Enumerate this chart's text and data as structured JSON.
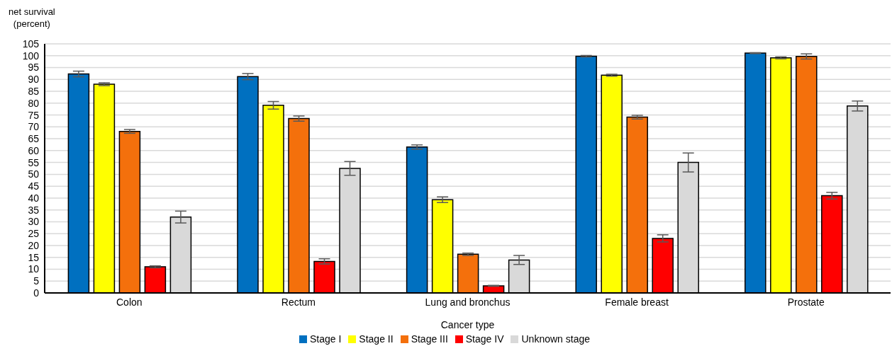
{
  "chart_data": {
    "type": "bar",
    "ylabel": "net survival\n(percent)",
    "xlabel": "Cancer type",
    "categories": [
      "Colon",
      "Rectum",
      "Lung and bronchus",
      "Female breast",
      "Prostate"
    ],
    "series": [
      {
        "name": "Stage I",
        "color": "#0070c0",
        "values": [
          92.3,
          91.2,
          61.5,
          99.8,
          101.1
        ],
        "errors": [
          1.2,
          1.3,
          0.9,
          0.3,
          0.2
        ]
      },
      {
        "name": "Stage II",
        "color": "#ffff00",
        "values": [
          88.0,
          79.1,
          39.3,
          91.8,
          99.1
        ],
        "errors": [
          0.6,
          1.6,
          1.2,
          0.4,
          0.4
        ]
      },
      {
        "name": "Stage III",
        "color": "#f4700c",
        "values": [
          68.1,
          73.5,
          16.3,
          74.1,
          99.7
        ],
        "errors": [
          0.8,
          1.1,
          0.5,
          0.8,
          1.1
        ]
      },
      {
        "name": "Stage IV",
        "color": "#ff0000",
        "values": [
          11.0,
          13.3,
          3.0,
          23.0,
          41.0
        ],
        "errors": [
          0.4,
          1.1,
          0.2,
          1.5,
          1.4
        ]
      },
      {
        "name": "Unknown stage",
        "color": "#d9d9d9",
        "values": [
          32.0,
          52.5,
          13.9,
          55.0,
          78.8
        ],
        "errors": [
          2.5,
          2.9,
          1.9,
          4.0,
          2.1
        ]
      }
    ],
    "ylim": [
      0,
      105
    ],
    "yticks": [
      0,
      5,
      10,
      15,
      20,
      25,
      30,
      35,
      40,
      45,
      50,
      55,
      60,
      65,
      70,
      75,
      80,
      85,
      90,
      95,
      100,
      105
    ],
    "grid": "y",
    "legend": "bottom"
  }
}
